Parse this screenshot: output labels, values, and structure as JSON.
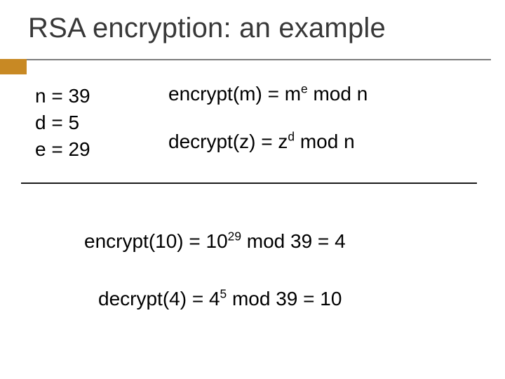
{
  "slide": {
    "title": "RSA encryption: an example",
    "accent_color": "#c88924",
    "rule_color_top": "#7c7c7c",
    "rule_color_mid": "#1a1a1a",
    "background_color": "#ffffff",
    "title_fontsize": 40,
    "body_fontsize": 28,
    "params": {
      "n_label": "n = 39",
      "d_label": "d = 5",
      "e_label": "e = 29"
    },
    "formulas": {
      "encrypt_prefix": "encrypt(m) = m",
      "encrypt_exp": "e",
      "encrypt_suffix": " mod n",
      "decrypt_prefix": "decrypt(z) = z",
      "decrypt_exp": "d",
      "decrypt_suffix": " mod n"
    },
    "examples": {
      "enc_prefix": "encrypt(10) = 10",
      "enc_exp": "29",
      "enc_suffix": " mod 39 = 4",
      "dec_prefix": "decrypt(4) = 4",
      "dec_exp": "5",
      "dec_suffix": " mod 39 = 10"
    }
  }
}
